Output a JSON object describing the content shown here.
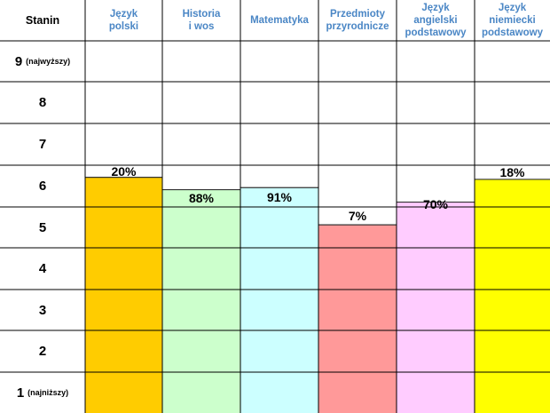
{
  "chart_data": {
    "type": "bar",
    "first_column_header": "Stanin",
    "categories": [
      "Język\npolski",
      "Historia\ni wos",
      "Matematyka",
      "Przedmioty\nprzyrodnicze",
      "Język\nangielski\npodstawowy",
      "Język\nniemiecki\npodstawowy"
    ],
    "rows": [
      {
        "label": "9",
        "note": "(najwyższy)"
      },
      {
        "label": "8",
        "note": ""
      },
      {
        "label": "7",
        "note": ""
      },
      {
        "label": "6",
        "note": ""
      },
      {
        "label": "5",
        "note": ""
      },
      {
        "label": "4",
        "note": ""
      },
      {
        "label": "3",
        "note": ""
      },
      {
        "label": "2",
        "note": ""
      },
      {
        "label": "1",
        "note": "(najniższy)"
      }
    ],
    "values": [
      6.2,
      5.9,
      5.95,
      5.05,
      5.6,
      6.15
    ],
    "value_labels": [
      "20%",
      "88%",
      "91%",
      "7%",
      "70%",
      "18%"
    ],
    "colors": [
      "#ffcc00",
      "#ccffcc",
      "#ccffff",
      "#ff9999",
      "#ffccff",
      "#ffff00"
    ],
    "ylim": [
      0.5,
      9.5
    ]
  }
}
